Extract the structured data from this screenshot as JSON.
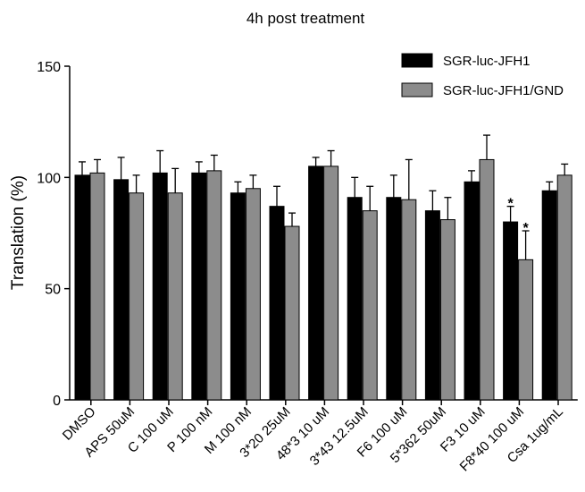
{
  "chart_data": {
    "type": "bar",
    "title": "4h post treatment",
    "xlabel": "",
    "ylabel": "Translation (%)",
    "ylim": [
      0,
      150
    ],
    "yticks": [
      "0",
      "50",
      "100",
      "150"
    ],
    "grid": false,
    "legend_position": "top-right",
    "categories": [
      "DMSO",
      "APS 50uM",
      "C 100 uM",
      "P 100 nM",
      "M 100 nM",
      "3*20 25uM",
      "48*3 10 uM",
      "3*43 12.5uM",
      "F6 100 uM",
      "5*362 50uM",
      "F3 10 uM",
      "F8*40 100 uM",
      "Csa 1ug/mL"
    ],
    "series": [
      {
        "name": "SGR-luc-JFH1",
        "color": "#000000",
        "values": [
          101,
          99,
          102,
          102,
          93,
          87,
          105,
          91,
          91,
          85,
          98,
          80,
          94
        ],
        "errors": [
          6,
          10,
          10,
          5,
          5,
          9,
          4,
          9,
          10,
          9,
          5,
          7,
          4
        ]
      },
      {
        "name": "SGR-luc-JFH1/GND",
        "color": "#8c8c8c",
        "values": [
          102,
          93,
          93,
          103,
          95,
          78,
          105,
          85,
          90,
          81,
          108,
          63,
          101
        ],
        "errors": [
          6,
          8,
          11,
          7,
          6,
          6,
          7,
          11,
          18,
          10,
          11,
          13,
          5
        ]
      }
    ],
    "annotations": [
      {
        "text": "*",
        "category": "F8*40 100 uM",
        "series": 0
      },
      {
        "text": "*",
        "category": "F8*40 100 uM",
        "series": 1
      }
    ]
  }
}
